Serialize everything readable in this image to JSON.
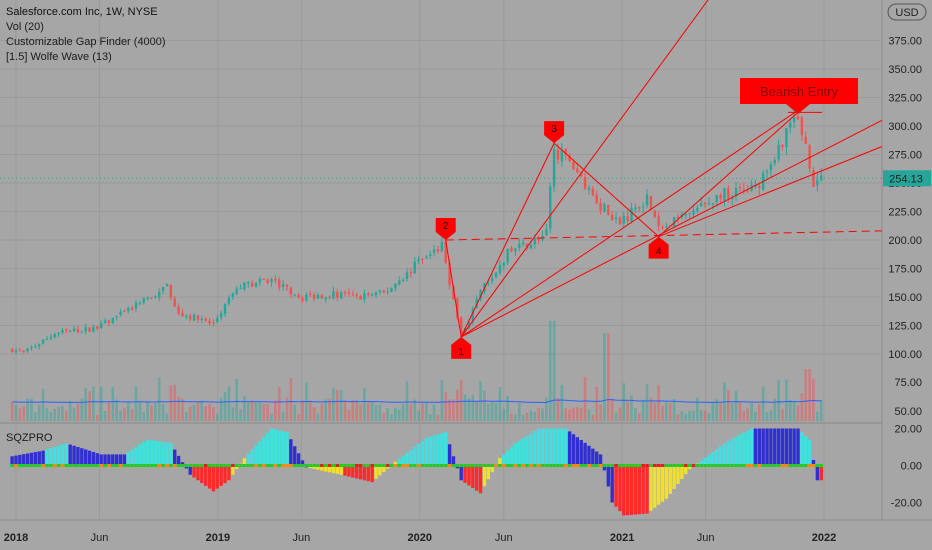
{
  "header": {
    "symbol_line": "Salesforce.com Inc, 1W, NYSE",
    "indicator_vol": "Vol (20)",
    "indicator_gap": "Customizable Gap Finder (4000)",
    "indicator_wolfe": "[1.5] Wolfe Wave (13)",
    "currency_button": "USD"
  },
  "colors": {
    "background": "#a6a6a6",
    "up": "#26a69a",
    "down": "#ef5350",
    "wave": "#ff0000",
    "vol_ma": "#2962ff",
    "sqz_cyan": "#40e0e0",
    "sqz_blue": "#3030d0",
    "sqz_red": "#ff2a2a",
    "sqz_yellow": "#f0e030",
    "sqz_green": "#22cc22",
    "sqz_orange": "#ff8a00"
  },
  "chart_data": [
    {
      "type": "candlestick",
      "title": "Salesforce.com Inc, 1W, NYSE",
      "x_ticks": [
        "2018",
        "Jun",
        "2019",
        "Jun",
        "2020",
        "Jun",
        "2021",
        "Jun",
        "2022"
      ],
      "y_ticks": [
        "100.00",
        "125.00",
        "150.00",
        "175.00",
        "200.00",
        "225.00",
        "250.00",
        "275.00",
        "300.00",
        "325.00",
        "350.00",
        "375.00"
      ],
      "ylim": [
        45,
        420
      ],
      "last_price": "254.13",
      "price_path": [
        [
          "2017-12-25",
          104
        ],
        [
          "2018-01-15",
          101
        ],
        [
          "2018-03-12",
          118
        ],
        [
          "2018-05-28",
          123
        ],
        [
          "2018-07-23",
          138
        ],
        [
          "2018-09-03",
          150
        ],
        [
          "2018-10-01",
          160
        ],
        [
          "2018-10-22",
          136
        ],
        [
          "2018-12-24",
          126
        ],
        [
          "2019-02-04",
          158
        ],
        [
          "2019-04-08",
          165
        ],
        [
          "2019-06-03",
          150
        ],
        [
          "2019-07-29",
          153
        ],
        [
          "2019-09-02",
          150
        ],
        [
          "2019-10-28",
          153
        ],
        [
          "2019-12-30",
          180
        ],
        [
          "2020-02-10",
          195
        ],
        [
          "2020-03-16",
          116
        ],
        [
          "2020-04-27",
          160
        ],
        [
          "2020-06-08",
          188
        ],
        [
          "2020-08-17",
          205
        ],
        [
          "2020-08-31",
          280
        ],
        [
          "2020-10-12",
          260
        ],
        [
          "2020-11-23",
          230
        ],
        [
          "2020-12-28",
          215
        ],
        [
          "2021-02-15",
          238
        ],
        [
          "2021-03-08",
          208
        ],
        [
          "2021-05-10",
          225
        ],
        [
          "2021-06-28",
          240
        ],
        [
          "2021-08-30",
          245
        ],
        [
          "2021-10-18",
          288
        ],
        [
          "2021-11-08",
          310
        ],
        [
          "2021-11-29",
          285
        ],
        [
          "2021-12-13",
          250
        ],
        [
          "2021-12-27",
          254
        ]
      ],
      "pattern_labels": [
        "1",
        "2",
        "3",
        "4"
      ],
      "annotation": "Bearish Entry"
    },
    {
      "type": "bar",
      "title": "Vol (20)",
      "y_ticks": [
        "50.00",
        "75.00"
      ]
    },
    {
      "type": "bar",
      "title": "SQZPRO",
      "y_ticks": [
        "20.00",
        "0.00",
        "-20.00"
      ],
      "ylim": [
        -28,
        22
      ],
      "segments": [
        [
          "2017-12-25",
          5,
          "#3030d0"
        ],
        [
          "2018-02-19",
          8,
          "#40e0e0"
        ],
        [
          "2018-04-02",
          12,
          "#3030d0"
        ],
        [
          "2018-06-04",
          6,
          "#3030d0"
        ],
        [
          "2018-07-16",
          6,
          "#40e0e0"
        ],
        [
          "2018-08-27",
          14,
          "#40e0e0"
        ],
        [
          "2018-10-08",
          12,
          "#3030d0"
        ],
        [
          "2018-11-12",
          -5,
          "#ff2a2a"
        ],
        [
          "2018-12-24",
          -14,
          "#ff2a2a"
        ],
        [
          "2019-01-21",
          -8,
          "#f0e030"
        ],
        [
          "2019-02-18",
          4,
          "#40e0e0"
        ],
        [
          "2019-04-08",
          20,
          "#40e0e0"
        ],
        [
          "2019-05-06",
          18,
          "#3030d0"
        ],
        [
          "2019-06-10",
          -1,
          "#f0e030"
        ],
        [
          "2019-08-12",
          -5,
          "#ff2a2a"
        ],
        [
          "2019-10-07",
          -9,
          "#f0e030"
        ],
        [
          "2019-11-18",
          2,
          "#40e0e0"
        ],
        [
          "2020-01-13",
          15,
          "#40e0e0"
        ],
        [
          "2020-02-17",
          18,
          "#3030d0"
        ],
        [
          "2020-03-16",
          -8,
          "#ff2a2a"
        ],
        [
          "2020-04-20",
          -15,
          "#f0e030"
        ],
        [
          "2020-05-25",
          4,
          "#40e0e0"
        ],
        [
          "2020-06-22",
          12,
          "#40e0e0"
        ],
        [
          "2020-08-03",
          20,
          "#40e0e0"
        ],
        [
          "2020-09-21",
          20,
          "#3030d0"
        ],
        [
          "2020-11-23",
          6,
          "#3030d0"
        ],
        [
          "2020-12-14",
          -20,
          "#ff2a2a"
        ],
        [
          "2021-01-04",
          -27,
          "#ff2a2a"
        ],
        [
          "2021-02-15",
          -26,
          "#f0e030"
        ],
        [
          "2021-03-22",
          -18,
          "#f0e030"
        ],
        [
          "2021-05-03",
          -2,
          "#f0e030"
        ],
        [
          "2021-05-17",
          1,
          "#40e0e0"
        ],
        [
          "2021-07-05",
          12,
          "#40e0e0"
        ],
        [
          "2021-08-23",
          20,
          "#3030d0"
        ],
        [
          "2021-11-15",
          20,
          "#40e0e0"
        ],
        [
          "2021-12-06",
          14,
          "#3030d0"
        ],
        [
          "2021-12-20",
          -8,
          "#ff2a2a"
        ]
      ]
    }
  ]
}
